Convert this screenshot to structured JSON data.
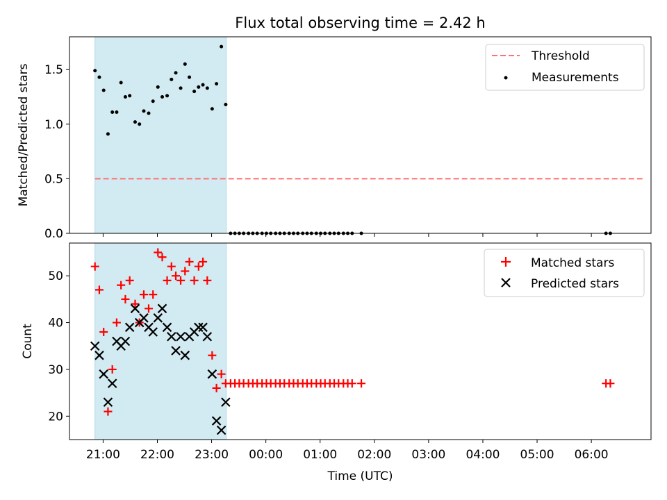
{
  "chart_data": [
    {
      "type": "scatter",
      "title": "Flux total observing time = 2.42 h",
      "xlabel": "",
      "ylabel": "Matched/Predicted stars",
      "ylim": [
        0,
        1.8
      ],
      "yticks": [
        "0.0",
        "0.5",
        "1.0",
        "1.5"
      ],
      "ytick_values": [
        0,
        0.5,
        1.0,
        1.5
      ],
      "shaded_span": {
        "x_start": 20.85,
        "x_end": 23.27,
        "color": "#add8e6"
      },
      "legend_position": "top-right",
      "series": [
        {
          "name": "Threshold",
          "kind": "line",
          "style": "dashed",
          "color": "#ff7070",
          "points": [
            [
              20.85,
              0.5
            ],
            [
              30.95,
              0.5
            ]
          ]
        },
        {
          "name": "Measurements",
          "kind": "scatter",
          "marker": "dot",
          "color": "#000000",
          "points": [
            [
              20.85,
              1.49
            ],
            [
              20.93,
              1.43
            ],
            [
              21.01,
              1.31
            ],
            [
              21.09,
              0.91
            ],
            [
              21.17,
              1.11
            ],
            [
              21.25,
              1.11
            ],
            [
              21.33,
              1.38
            ],
            [
              21.41,
              1.25
            ],
            [
              21.49,
              1.26
            ],
            [
              21.59,
              1.02
            ],
            [
              21.67,
              1.0
            ],
            [
              21.75,
              1.12
            ],
            [
              21.84,
              1.1
            ],
            [
              21.92,
              1.21
            ],
            [
              22.01,
              1.34
            ],
            [
              22.09,
              1.25
            ],
            [
              22.18,
              1.26
            ],
            [
              22.26,
              1.41
            ],
            [
              22.34,
              1.47
            ],
            [
              22.43,
              1.33
            ],
            [
              22.51,
              1.55
            ],
            [
              22.59,
              1.43
            ],
            [
              22.68,
              1.3
            ],
            [
              22.76,
              1.34
            ],
            [
              22.84,
              1.36
            ],
            [
              22.92,
              1.33
            ],
            [
              23.01,
              1.14
            ],
            [
              23.09,
              1.37
            ],
            [
              23.18,
              1.71
            ],
            [
              23.26,
              1.18
            ],
            [
              23.35,
              0
            ],
            [
              23.43,
              0
            ],
            [
              23.51,
              0
            ],
            [
              23.59,
              0
            ],
            [
              23.68,
              0
            ],
            [
              23.76,
              0
            ],
            [
              23.84,
              0
            ],
            [
              23.93,
              0
            ],
            [
              24.01,
              0
            ],
            [
              24.09,
              0
            ],
            [
              24.18,
              0
            ],
            [
              24.26,
              0
            ],
            [
              24.34,
              0
            ],
            [
              24.43,
              0
            ],
            [
              24.51,
              0
            ],
            [
              24.59,
              0
            ],
            [
              24.68,
              0
            ],
            [
              24.76,
              0
            ],
            [
              24.84,
              0
            ],
            [
              24.93,
              0
            ],
            [
              25.01,
              0
            ],
            [
              25.09,
              0
            ],
            [
              25.18,
              0
            ],
            [
              25.26,
              0
            ],
            [
              25.34,
              0
            ],
            [
              25.43,
              0
            ],
            [
              25.51,
              0
            ],
            [
              25.59,
              0
            ],
            [
              25.76,
              0
            ],
            [
              30.27,
              0
            ],
            [
              30.35,
              0
            ]
          ]
        }
      ]
    },
    {
      "type": "scatter",
      "title": "",
      "xlabel": "Time (UTC)",
      "ylabel": "Count",
      "ylim": [
        15,
        57
      ],
      "yticks": [
        "20",
        "30",
        "40",
        "50"
      ],
      "ytick_values": [
        20,
        30,
        40,
        50
      ],
      "xlim": [
        20.38,
        31.1
      ],
      "xticks": [
        "21:00",
        "22:00",
        "23:00",
        "00:00",
        "01:00",
        "02:00",
        "03:00",
        "04:00",
        "05:00",
        "06:00"
      ],
      "xtick_values": [
        21,
        22,
        23,
        24,
        25,
        26,
        27,
        28,
        29,
        30
      ],
      "shaded_span": {
        "x_start": 20.85,
        "x_end": 23.27,
        "color": "#add8e6"
      },
      "legend_position": "top-right",
      "series": [
        {
          "name": "Matched stars",
          "kind": "scatter",
          "marker": "plus",
          "color": "#ff0000",
          "points": [
            [
              20.85,
              52
            ],
            [
              20.93,
              47
            ],
            [
              21.01,
              38
            ],
            [
              21.09,
              21
            ],
            [
              21.17,
              30
            ],
            [
              21.25,
              40
            ],
            [
              21.33,
              48
            ],
            [
              21.41,
              45
            ],
            [
              21.49,
              49
            ],
            [
              21.59,
              44
            ],
            [
              21.67,
              40
            ],
            [
              21.75,
              46
            ],
            [
              21.84,
              43
            ],
            [
              21.92,
              46
            ],
            [
              22.01,
              55
            ],
            [
              22.09,
              54
            ],
            [
              22.18,
              49
            ],
            [
              22.26,
              52
            ],
            [
              22.34,
              50
            ],
            [
              22.43,
              49
            ],
            [
              22.51,
              51
            ],
            [
              22.59,
              53
            ],
            [
              22.68,
              49
            ],
            [
              22.76,
              52
            ],
            [
              22.84,
              53
            ],
            [
              22.92,
              49
            ],
            [
              23.01,
              33
            ],
            [
              23.09,
              26
            ],
            [
              23.18,
              29
            ],
            [
              23.26,
              27
            ],
            [
              23.35,
              27
            ],
            [
              23.43,
              27
            ],
            [
              23.51,
              27
            ],
            [
              23.59,
              27
            ],
            [
              23.68,
              27
            ],
            [
              23.76,
              27
            ],
            [
              23.84,
              27
            ],
            [
              23.93,
              27
            ],
            [
              24.01,
              27
            ],
            [
              24.09,
              27
            ],
            [
              24.18,
              27
            ],
            [
              24.26,
              27
            ],
            [
              24.34,
              27
            ],
            [
              24.43,
              27
            ],
            [
              24.51,
              27
            ],
            [
              24.59,
              27
            ],
            [
              24.68,
              27
            ],
            [
              24.76,
              27
            ],
            [
              24.84,
              27
            ],
            [
              24.93,
              27
            ],
            [
              25.01,
              27
            ],
            [
              25.09,
              27
            ],
            [
              25.18,
              27
            ],
            [
              25.26,
              27
            ],
            [
              25.34,
              27
            ],
            [
              25.43,
              27
            ],
            [
              25.51,
              27
            ],
            [
              25.59,
              27
            ],
            [
              25.76,
              27
            ],
            [
              30.27,
              27
            ],
            [
              30.35,
              27
            ]
          ]
        },
        {
          "name": "Predicted stars",
          "kind": "scatter",
          "marker": "x",
          "color": "#000000",
          "points": [
            [
              20.85,
              35
            ],
            [
              20.93,
              33
            ],
            [
              21.01,
              29
            ],
            [
              21.09,
              23
            ],
            [
              21.17,
              27
            ],
            [
              21.25,
              36
            ],
            [
              21.33,
              35
            ],
            [
              21.41,
              36
            ],
            [
              21.49,
              39
            ],
            [
              21.59,
              43
            ],
            [
              21.67,
              40
            ],
            [
              21.75,
              41
            ],
            [
              21.84,
              39
            ],
            [
              21.92,
              38
            ],
            [
              22.01,
              41
            ],
            [
              22.09,
              43
            ],
            [
              22.18,
              39
            ],
            [
              22.26,
              37
            ],
            [
              22.34,
              34
            ],
            [
              22.43,
              37
            ],
            [
              22.51,
              33
            ],
            [
              22.59,
              37
            ],
            [
              22.68,
              38
            ],
            [
              22.76,
              39
            ],
            [
              22.84,
              39
            ],
            [
              22.92,
              37
            ],
            [
              23.01,
              29
            ],
            [
              23.09,
              19
            ],
            [
              23.18,
              17
            ],
            [
              23.26,
              23
            ]
          ]
        }
      ]
    }
  ]
}
